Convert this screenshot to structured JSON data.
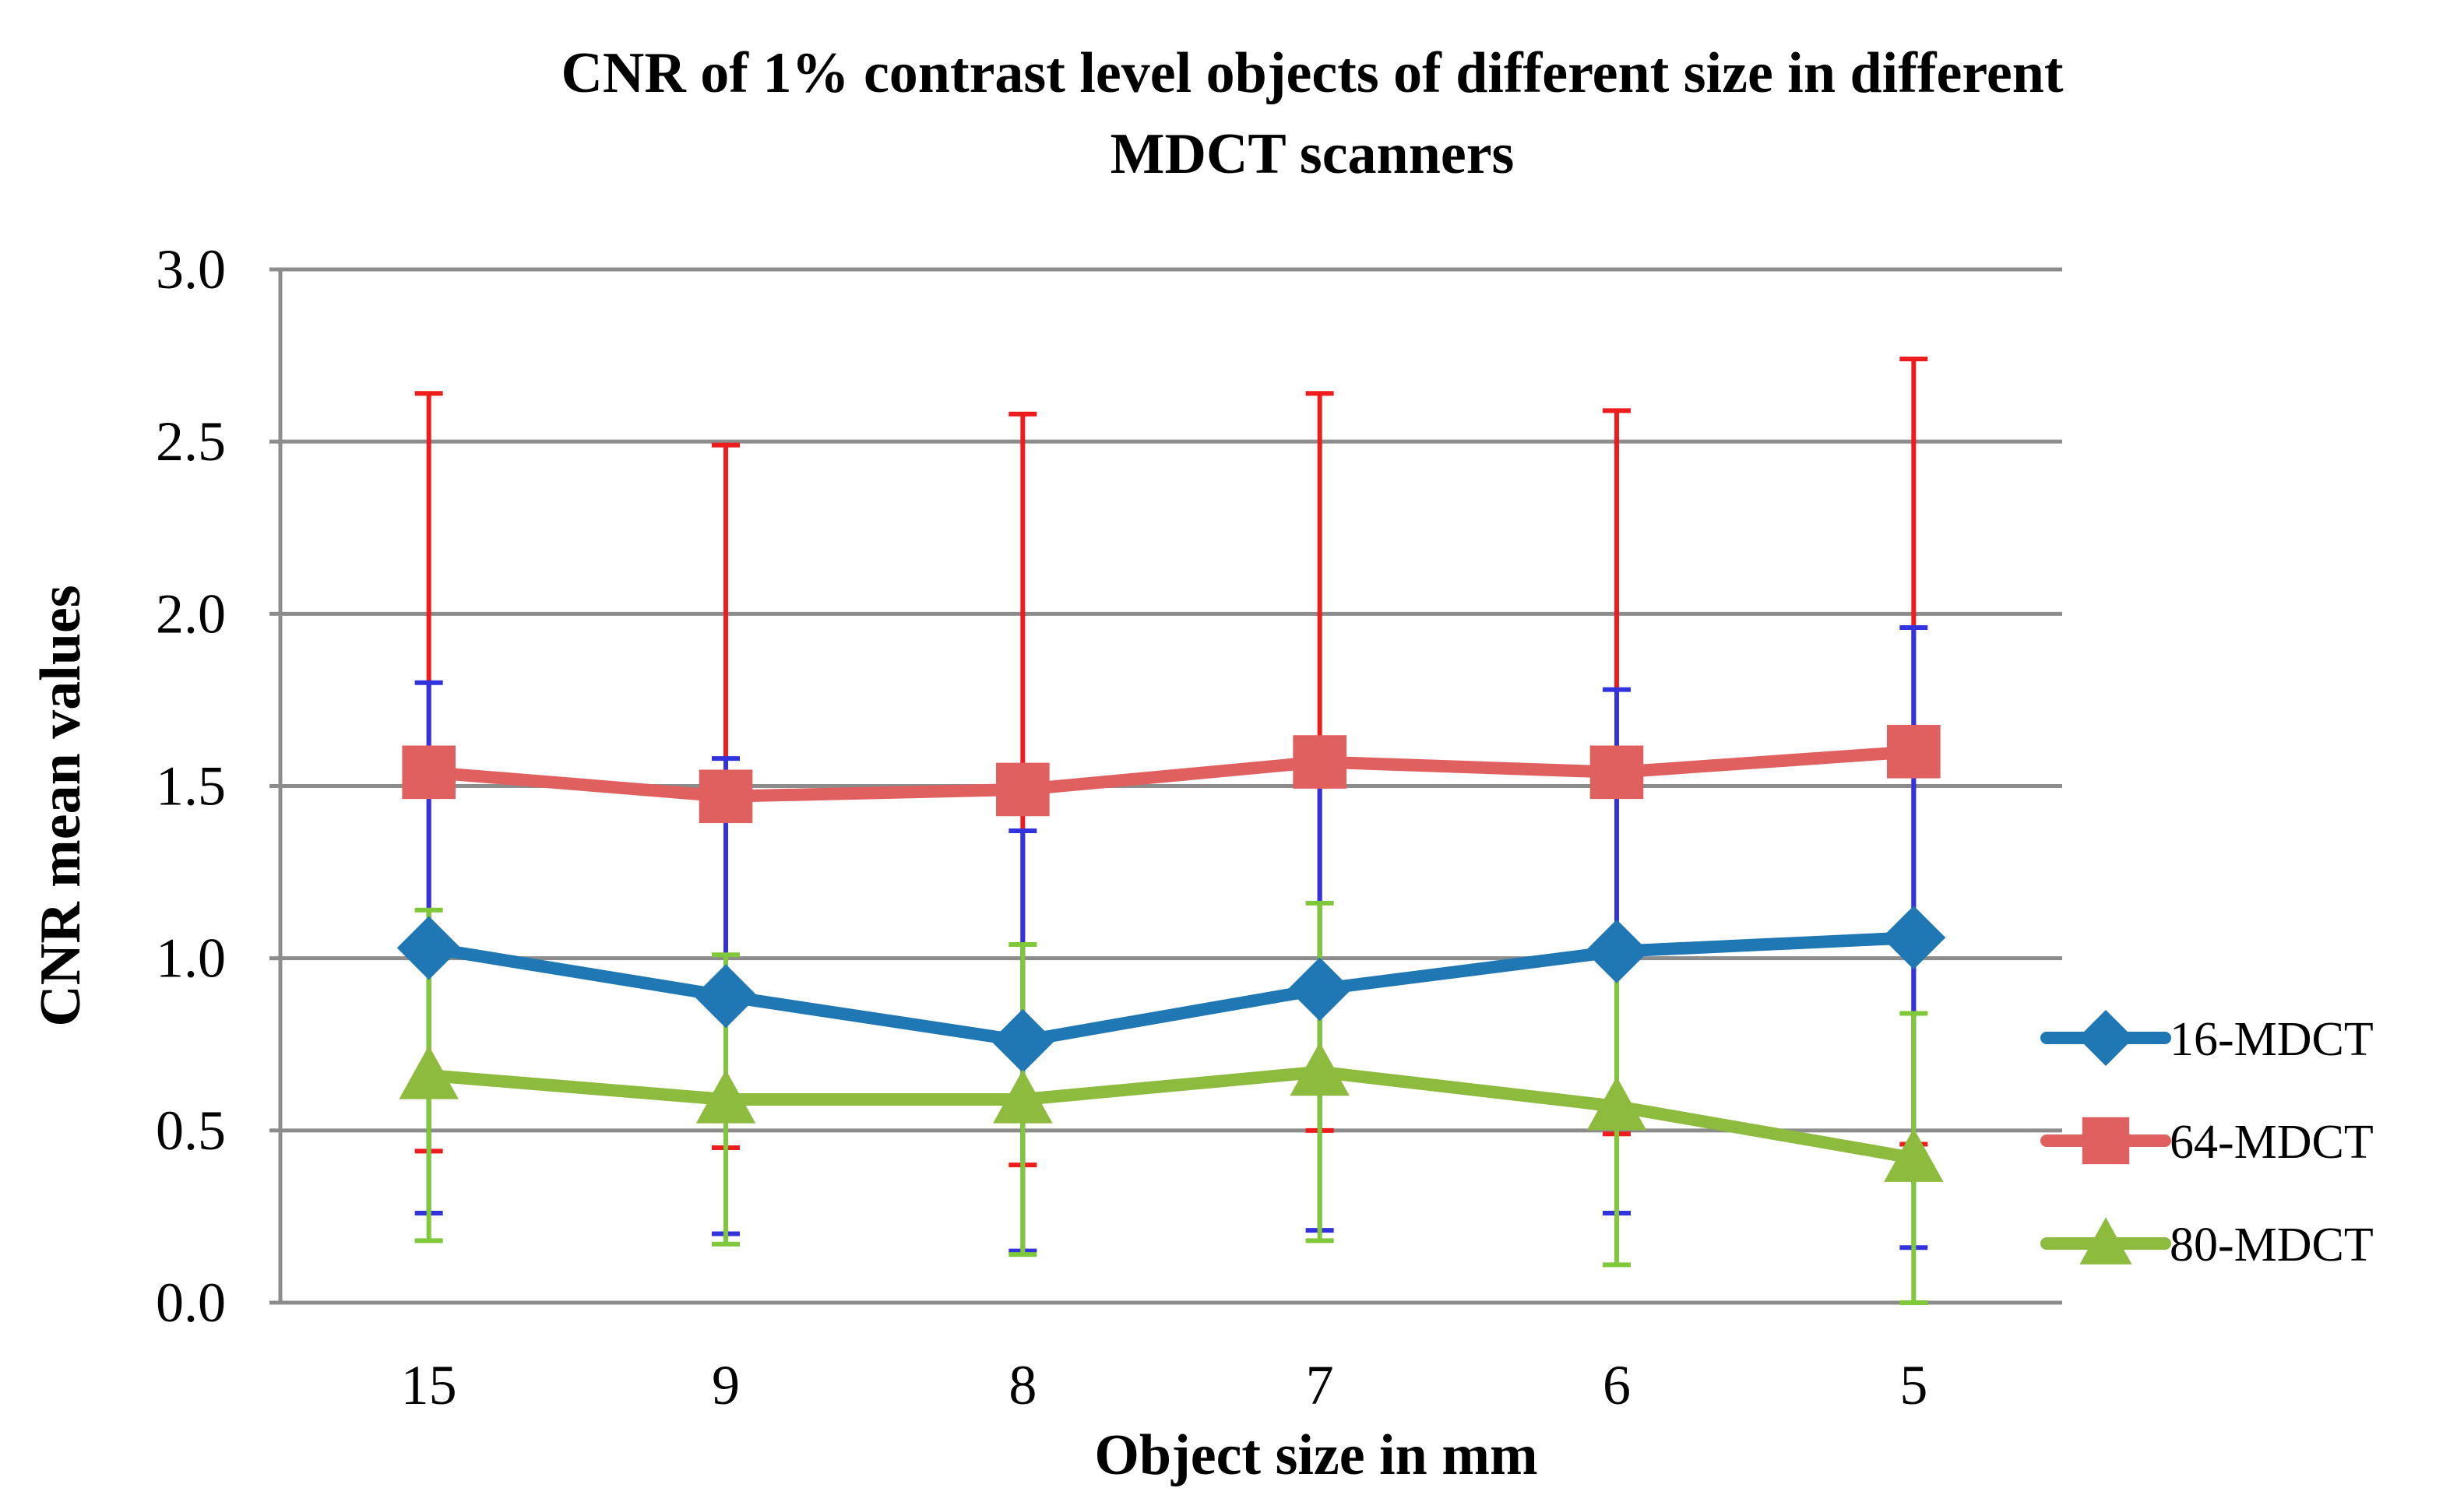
{
  "chart_data": {
    "type": "line",
    "title_lines": [
      "CNR of  1% contrast level objects of different size in different",
      "MDCT scanners"
    ],
    "xlabel": "Object size in mm",
    "ylabel": "CNR mean values",
    "categories": [
      "15",
      "9",
      "8",
      "7",
      "6",
      "5"
    ],
    "ylim": [
      0,
      3
    ],
    "ytick_values": [
      0,
      0.5,
      1,
      1.5,
      2,
      2.5,
      3
    ],
    "ytick_labels": [
      "0.0",
      "0.5",
      "1.0",
      "1.5",
      "2.0",
      "2.5",
      "3.0"
    ],
    "grid": true,
    "legend_position": "right",
    "series": [
      {
        "name": "16-MDCT",
        "color": "#1f77b4",
        "error_color": "#3333dd",
        "marker": "diamond",
        "values": [
          1.03,
          0.89,
          0.76,
          0.91,
          1.02,
          1.06
        ],
        "errors": [
          0.77,
          0.69,
          0.61,
          0.7,
          0.76,
          0.9
        ]
      },
      {
        "name": "64-MDCT",
        "color": "#e06060",
        "error_color": "#ee1c1c",
        "marker": "square",
        "values": [
          1.54,
          1.47,
          1.49,
          1.57,
          1.54,
          1.6
        ],
        "errors": [
          1.1,
          1.02,
          1.09,
          1.07,
          1.05,
          1.14
        ]
      },
      {
        "name": "80-MDCT",
        "color": "#8dbb3e",
        "error_color": "#7ec83a",
        "marker": "triangle",
        "values": [
          0.66,
          0.59,
          0.59,
          0.67,
          0.57,
          0.42
        ],
        "errors": [
          0.48,
          0.42,
          0.45,
          0.49,
          0.46,
          0.42
        ]
      }
    ]
  }
}
